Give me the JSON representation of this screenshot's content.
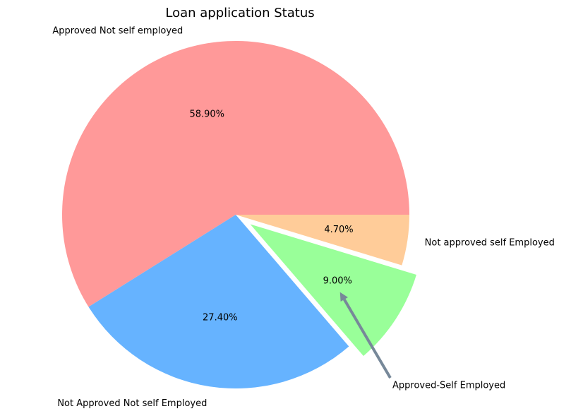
{
  "chart_data": {
    "type": "pie",
    "title": "Loan application Status",
    "slices": [
      {
        "label": "Approved Not self employed",
        "value": 58.9,
        "pct_text": "58.90%",
        "color": "#ff9999",
        "explode": false
      },
      {
        "label": "Not Approved Not self Employed",
        "value": 27.4,
        "pct_text": "27.40%",
        "color": "#66b3ff",
        "explode": false
      },
      {
        "label": "Approved-Self Employed",
        "value": 9.0,
        "pct_text": "9.00%",
        "color": "#99ff99",
        "explode": true
      },
      {
        "label": "Not approved self Employed",
        "value": 4.7,
        "pct_text": "4.70%",
        "color": "#ffcc99",
        "explode": false
      }
    ],
    "start_angle": 0,
    "direction": "counterclockwise",
    "annotation": {
      "target": "Approved-Self Employed",
      "arrow_color": "#778899"
    }
  }
}
